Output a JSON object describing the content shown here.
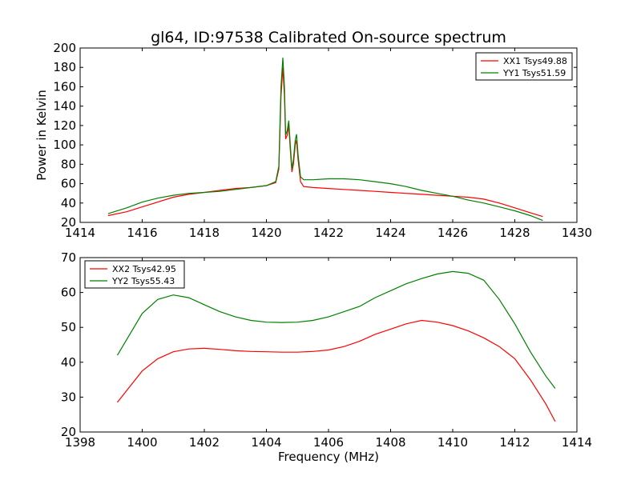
{
  "chart_data": [
    {
      "type": "line",
      "title": "gl64, ID:97538 Calibrated On-source spectrum",
      "xlabel": "",
      "ylabel": "Power in Kelvin",
      "xlim": [
        1414,
        1430
      ],
      "ylim": [
        20,
        200
      ],
      "xticks": [
        "1414",
        "1416",
        "1418",
        "1420",
        "1422",
        "1424",
        "1426",
        "1428",
        "1430"
      ],
      "yticks": [
        "20",
        "40",
        "60",
        "80",
        "100",
        "120",
        "140",
        "160",
        "180",
        "200"
      ],
      "legend_position": "top-right",
      "series": [
        {
          "name": "XX1 Tsys49.88",
          "color": "#ff0000",
          "points": [
            [
              1414.9,
              27
            ],
            [
              1415.5,
              31
            ],
            [
              1416.0,
              36
            ],
            [
              1416.5,
              41
            ],
            [
              1417.0,
              46
            ],
            [
              1417.5,
              49
            ],
            [
              1418.0,
              51
            ],
            [
              1418.5,
              53
            ],
            [
              1419.0,
              55
            ],
            [
              1419.5,
              56
            ],
            [
              1420.0,
              58
            ],
            [
              1420.3,
              61
            ],
            [
              1420.4,
              75
            ],
            [
              1420.47,
              150
            ],
            [
              1420.53,
              180
            ],
            [
              1420.58,
              150
            ],
            [
              1420.62,
              106
            ],
            [
              1420.67,
              110
            ],
            [
              1420.72,
              120
            ],
            [
              1420.77,
              95
            ],
            [
              1420.82,
              72
            ],
            [
              1420.87,
              80
            ],
            [
              1420.93,
              100
            ],
            [
              1420.97,
              105
            ],
            [
              1421.02,
              85
            ],
            [
              1421.1,
              62
            ],
            [
              1421.2,
              57
            ],
            [
              1421.5,
              56
            ],
            [
              1422.0,
              55
            ],
            [
              1422.5,
              54
            ],
            [
              1423.0,
              53
            ],
            [
              1423.5,
              52
            ],
            [
              1424.0,
              51
            ],
            [
              1424.5,
              50
            ],
            [
              1425.0,
              49
            ],
            [
              1425.5,
              48
            ],
            [
              1426.0,
              47
            ],
            [
              1426.5,
              46
            ],
            [
              1427.0,
              44
            ],
            [
              1427.5,
              40
            ],
            [
              1428.0,
              35
            ],
            [
              1428.5,
              30
            ],
            [
              1428.9,
              26
            ]
          ]
        },
        {
          "name": "YY1 Tsys51.59",
          "color": "#008000",
          "points": [
            [
              1414.9,
              29
            ],
            [
              1415.5,
              35
            ],
            [
              1416.0,
              41
            ],
            [
              1416.5,
              45
            ],
            [
              1417.0,
              48
            ],
            [
              1417.5,
              50
            ],
            [
              1418.0,
              51
            ],
            [
              1418.5,
              52
            ],
            [
              1419.0,
              54
            ],
            [
              1419.5,
              56
            ],
            [
              1420.0,
              58
            ],
            [
              1420.3,
              62
            ],
            [
              1420.4,
              78
            ],
            [
              1420.47,
              160
            ],
            [
              1420.53,
              190
            ],
            [
              1420.58,
              160
            ],
            [
              1420.62,
              110
            ],
            [
              1420.67,
              115
            ],
            [
              1420.72,
              125
            ],
            [
              1420.77,
              100
            ],
            [
              1420.82,
              75
            ],
            [
              1420.87,
              85
            ],
            [
              1420.93,
              105
            ],
            [
              1420.97,
              111
            ],
            [
              1421.02,
              90
            ],
            [
              1421.1,
              67
            ],
            [
              1421.2,
              64
            ],
            [
              1421.5,
              64
            ],
            [
              1422.0,
              65
            ],
            [
              1422.5,
              65
            ],
            [
              1423.0,
              64
            ],
            [
              1423.5,
              62
            ],
            [
              1424.0,
              60
            ],
            [
              1424.5,
              57
            ],
            [
              1425.0,
              53
            ],
            [
              1425.5,
              50
            ],
            [
              1426.0,
              47
            ],
            [
              1426.5,
              43
            ],
            [
              1427.0,
              40
            ],
            [
              1427.5,
              36
            ],
            [
              1428.0,
              32
            ],
            [
              1428.5,
              27
            ],
            [
              1428.9,
              22
            ]
          ]
        }
      ]
    },
    {
      "type": "line",
      "title": "",
      "xlabel": "Frequency (MHz)",
      "ylabel": "",
      "xlim": [
        1398,
        1414
      ],
      "ylim": [
        20,
        70
      ],
      "xticks": [
        "1398",
        "1400",
        "1402",
        "1404",
        "1406",
        "1408",
        "1410",
        "1412",
        "1414"
      ],
      "yticks": [
        "20",
        "30",
        "40",
        "50",
        "60",
        "70"
      ],
      "legend_position": "top-left",
      "series": [
        {
          "name": "XX2 Tsys42.95",
          "color": "#ff0000",
          "points": [
            [
              1399.2,
              28.5
            ],
            [
              1399.6,
              33
            ],
            [
              1400.0,
              37.5
            ],
            [
              1400.5,
              41
            ],
            [
              1401.0,
              43
            ],
            [
              1401.5,
              43.8
            ],
            [
              1402.0,
              44
            ],
            [
              1402.5,
              43.7
            ],
            [
              1403.0,
              43.3
            ],
            [
              1403.5,
              43.1
            ],
            [
              1404.0,
              43
            ],
            [
              1404.5,
              42.9
            ],
            [
              1405.0,
              42.9
            ],
            [
              1405.5,
              43.1
            ],
            [
              1406.0,
              43.5
            ],
            [
              1406.5,
              44.5
            ],
            [
              1407.0,
              46
            ],
            [
              1407.5,
              48
            ],
            [
              1408.0,
              49.5
            ],
            [
              1408.5,
              51
            ],
            [
              1409.0,
              52
            ],
            [
              1409.5,
              51.5
            ],
            [
              1410.0,
              50.5
            ],
            [
              1410.5,
              49
            ],
            [
              1411.0,
              47
            ],
            [
              1411.5,
              44.5
            ],
            [
              1412.0,
              41
            ],
            [
              1412.5,
              35
            ],
            [
              1413.0,
              28
            ],
            [
              1413.3,
              23
            ]
          ]
        },
        {
          "name": "YY2 Tsys55.43",
          "color": "#008000",
          "points": [
            [
              1399.2,
              42
            ],
            [
              1399.6,
              48
            ],
            [
              1400.0,
              54
            ],
            [
              1400.5,
              58
            ],
            [
              1401.0,
              59.3
            ],
            [
              1401.5,
              58.5
            ],
            [
              1402.0,
              56.5
            ],
            [
              1402.5,
              54.5
            ],
            [
              1403.0,
              53
            ],
            [
              1403.5,
              52
            ],
            [
              1404.0,
              51.5
            ],
            [
              1404.5,
              51.4
            ],
            [
              1405.0,
              51.5
            ],
            [
              1405.5,
              52
            ],
            [
              1406.0,
              53
            ],
            [
              1406.5,
              54.5
            ],
            [
              1407.0,
              56
            ],
            [
              1407.5,
              58.5
            ],
            [
              1408.0,
              60.5
            ],
            [
              1408.5,
              62.5
            ],
            [
              1409.0,
              64
            ],
            [
              1409.5,
              65.3
            ],
            [
              1410.0,
              66
            ],
            [
              1410.5,
              65.5
            ],
            [
              1411.0,
              63.5
            ],
            [
              1411.5,
              58
            ],
            [
              1412.0,
              51
            ],
            [
              1412.5,
              43
            ],
            [
              1413.0,
              36
            ],
            [
              1413.3,
              32.5
            ]
          ]
        }
      ]
    }
  ]
}
